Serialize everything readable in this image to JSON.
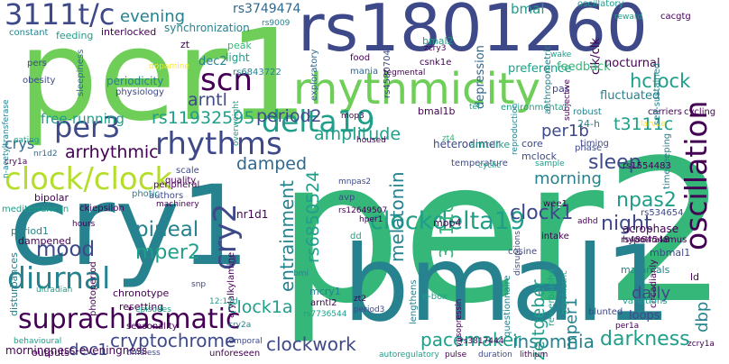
{
  "palette": {
    "dark_purple": "#440154",
    "indigo": "#3e4989",
    "blue": "#31688e",
    "teal": "#26828e",
    "teal_green": "#1f9e89",
    "green": "#35b779",
    "light_green": "#6ece58",
    "lime": "#b5de2b",
    "yellow": "#fde725",
    "background": "#ffffff"
  },
  "words": [
    "per2",
    "per1",
    "cry1",
    "bmal1",
    "rs1801260",
    "rhythmicity",
    "oscillation",
    "3111t/c",
    "suprachiasmatic",
    "clock/clock",
    "delta19",
    "rhythms",
    "clockdelta19",
    "scn",
    "per3",
    "diurnal",
    "cry2",
    "entrainment",
    "cryptochrome",
    "clockwork",
    "pacemaker",
    "insomnia",
    "darkness",
    "rs11932595",
    "period2",
    "mood",
    "pineal",
    "mper2",
    "melatonin",
    "night",
    "npas2",
    "arrhythmic",
    "damped",
    "amplitude",
    "hclock",
    "sleep",
    "3111c",
    "clock1",
    "evening",
    "rs3749474",
    "arntl",
    "morning",
    "clock1a",
    "rs6850524",
    "zeitgeber",
    "daily",
    "mper1",
    "dbp",
    "dec1",
    "t3111c",
    "per1b",
    "free-running",
    "crys",
    "mood2",
    "bmal",
    "synchronization",
    "rs4580704",
    "depression",
    "clk/clk",
    "anthropometric",
    "oscillatory",
    "feeding",
    "interlocked",
    "constant",
    "zt",
    "dec2",
    "periodicity",
    "physiology",
    "light",
    "peak",
    "rs6843722",
    "sleepiness",
    "pers",
    "obesity",
    "exploratory",
    "food",
    "mania",
    "bmal2",
    "zcry3",
    "csnk1e",
    "tegmental",
    "tef",
    "environmental",
    "heterodimer",
    "core",
    "preference",
    "feedback",
    "nocturnal",
    "fluctuated",
    "robust",
    "pas",
    "24-h",
    "mclock",
    "arnt-like",
    "bmal1b",
    "carriers",
    "cycling",
    "larvae",
    "nr1d1",
    "morningness-eveningness",
    "chronotype",
    "resetting",
    "dampened",
    "episodes",
    "photoperiod",
    "ultradian",
    "disturbances",
    "seasonality",
    "arylalkylamine",
    "mcry1",
    "arntl2",
    "rs7736544",
    "lengthens",
    "e-box",
    "questionnaire",
    "rev-erbalpha",
    "psychiatric",
    "circadianly",
    "ld",
    "loops",
    "mbmal1",
    "zcry1a",
    "acrophase",
    "hypothalamus",
    "timekeeping",
    "variations",
    "rs534654",
    "rs1554483",
    "wee1",
    "mnpas2",
    "rs12649507",
    "avp",
    "dd",
    "hper1",
    "cosine",
    "intake",
    "disruptions",
    "adhd",
    "mammals",
    "rs4864548",
    "outputs",
    "behavioural",
    "timeless",
    "unforeseen",
    "autoregulatory",
    "pulse",
    "duration",
    "lithium",
    "rs3817444",
    "per1a",
    "blunted",
    "vasopressin",
    "zt2",
    "period3",
    "temporal",
    "cry2a",
    "snp",
    "bmi",
    "mediterranean",
    "bipolar",
    "ckiepsilon",
    "machinery",
    "sample",
    "hours",
    "dopamine",
    "n-acetyltransferase",
    "quality",
    "authors",
    "photic",
    "peripheral",
    "scale",
    "temperature",
    "timing",
    "phase",
    "subjective",
    "reproduction",
    "reward",
    "cacgtg",
    "self-sustained",
    "wake",
    "overweight",
    "rs9009",
    "n-acetyltransferase2",
    "rs4580",
    "eating",
    "period1",
    "mop3",
    "mop4",
    "housed",
    "nr1d2",
    "12:12d",
    "cry1a",
    "zt4",
    "cyclic"
  ]
}
